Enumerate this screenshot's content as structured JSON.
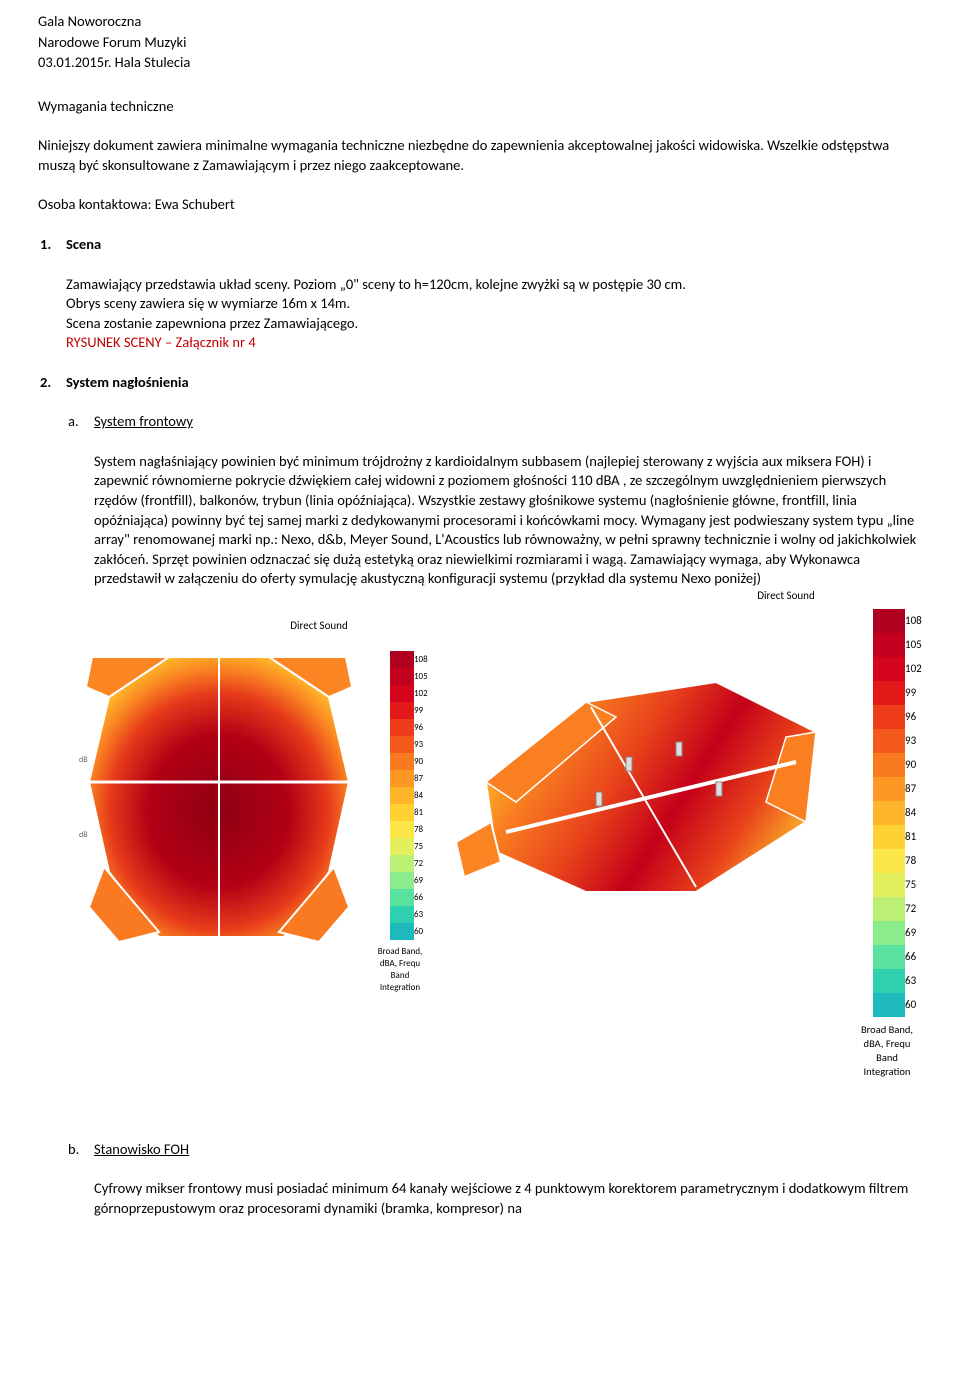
{
  "header": {
    "line1": "Gala Noworoczna",
    "line2": "Narodowe Forum Muzyki",
    "line3": "03.01.2015r. Hala Stulecia"
  },
  "section_title": "Wymagania techniczne",
  "intro": {
    "p1": "Niniejszy dokument zawiera minimalne wymagania techniczne niezbędne do zapewnienia akceptowalnej jakości widowiska. Wszelkie odstępstwa muszą być skonsultowane z Zamawiającym i przez niego zaakceptowane.",
    "contact": "Osoba kontaktowa: Ewa Schubert"
  },
  "item1": {
    "num": "1.",
    "title": "Scena",
    "body_l1": "Zamawiający przedstawia układ sceny. Poziom „0\" sceny to h=120cm, kolejne zwyżki są w postępie 30 cm.",
    "body_l2": "Obrys sceny zawiera się w wymiarze 16m x 14m.",
    "body_l3": "Scena zostanie zapewniona przez Zamawiającego.",
    "body_red": "RYSUNEK SCENY – Załącznik nr 4"
  },
  "item2": {
    "num": "2.",
    "title": "System nagłośnienia",
    "sub_a": {
      "letter": "a.",
      "title": "System frontowy",
      "body": "System nagłaśniający powinien być minimum trójdrożny z kardioidalnym subbasem (najlepiej sterowany z wyjścia aux miksera FOH) i zapewnić równomierne pokrycie dźwiękiem całej widowni z poziomem głośności 110 dBA , ze szczególnym uwzględnieniem pierwszych rzędów (frontfill), balkonów, trybun (linia opóźniająca). Wszystkie zestawy głośnikowe systemu (nagłośnienie główne, frontfill, linia opóźniająca) powinny być tej samej marki z dedykowanymi procesorami i końcówkami mocy. Wymagany jest podwieszany system  typu „line array\" renomowanej marki np.: Nexo, d&b, Meyer Sound, L'Acoustics lub równoważny, w pełni sprawny technicznie i wolny od jakichkolwiek zakłóceń. Sprzęt powinien odznaczać się dużą estetyką oraz niewielkimi rozmiarami i wagą. Zamawiający wymaga, aby Wykonawca przedstawił w załączeniu do oferty symulację akustyczną konfiguracji systemu (przykład dla systemu Nexo poniżej)"
    },
    "sub_b": {
      "letter": "b.",
      "title": "Stanowisko FOH",
      "body": "Cyfrowy mikser frontowy musi posiadać minimum 64 kanały wejściowe z 4 punktowym korektorem parametrycznym i dodatkowym filtrem górnoprzepustowym oraz procesorami dynamiki (bramka, kompresor) na"
    }
  },
  "sim": {
    "title": "Direct Sound",
    "caption": "Broad Band, dBA, Frequ Band Integration",
    "scale": {
      "values": [
        "108",
        "105",
        "102",
        "99",
        "96",
        "93",
        "90",
        "87",
        "84",
        "81",
        "78",
        "75",
        "72",
        "69",
        "66",
        "63",
        "60"
      ],
      "colors": [
        "#b00020",
        "#c3001e",
        "#d4041c",
        "#e31818",
        "#ee3b1a",
        "#f55a1d",
        "#fa7a20",
        "#fd9824",
        "#ffb52a",
        "#ffd133",
        "#fbe74a",
        "#e3ef5f",
        "#bbf075",
        "#8aec8a",
        "#58e19f",
        "#2fd0b0",
        "#1eb9bd"
      ]
    },
    "left": {
      "bg": "#ffffff",
      "fill_main": "#b30015",
      "fill_edge1": "#e63a1a",
      "fill_edge2": "#fa8522",
      "fill_edge3": "#ffc82c"
    },
    "right": {
      "bg": "#ffffff",
      "fill_main": "#c40019",
      "fill_edge1": "#e8421b",
      "fill_edge2": "#f97f21",
      "fill_edge3": "#ffc22a"
    }
  }
}
